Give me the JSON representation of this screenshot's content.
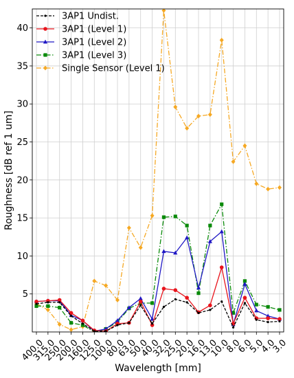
{
  "chart_data": {
    "type": "line",
    "title": "",
    "xlabel": "Wavelength [mm]",
    "ylabel": "Roughness [dB ref 1 um]",
    "ylim": [
      0,
      42.5
    ],
    "yticks": [
      5,
      10,
      15,
      20,
      25,
      30,
      35,
      40
    ],
    "grid": true,
    "legend_placement": "top-left",
    "categories": [
      "400.0",
      "315.0",
      "250.0",
      "200.0",
      "160.0",
      "125.0",
      "100.0",
      "80.0",
      "63.0",
      "50.0",
      "40.0",
      "32.0",
      "25.0",
      "20.0",
      "16.0",
      "13.0",
      "10.0",
      "8.0",
      "6.0",
      "5.0",
      "4.0",
      "3.0"
    ],
    "series": [
      {
        "name": "3AP1 Undist.",
        "color": "#000000",
        "linestyle": "dashed",
        "marker": "point",
        "values": [
          3.7,
          3.9,
          3.9,
          2.1,
          1.1,
          0.1,
          0.1,
          0.9,
          1.2,
          3.5,
          1.1,
          3.3,
          4.3,
          3.9,
          2.5,
          2.9,
          4.0,
          0.6,
          3.8,
          1.6,
          1.3,
          1.4
        ]
      },
      {
        "name": "3AP1 (Level 1)",
        "color": "#e8141c",
        "linestyle": "solid",
        "marker": "circle",
        "values": [
          4.0,
          4.1,
          4.2,
          2.5,
          1.5,
          0.2,
          0.1,
          1.1,
          1.2,
          4.0,
          0.9,
          5.7,
          5.5,
          4.5,
          2.6,
          3.5,
          8.5,
          1.1,
          4.5,
          1.8,
          1.8,
          1.7
        ]
      },
      {
        "name": "3AP1 (Level 2)",
        "color": "#1f17c4",
        "linestyle": "solid",
        "marker": "triangle",
        "values": [
          4.0,
          4.1,
          4.1,
          2.2,
          1.5,
          0.1,
          0.4,
          1.5,
          3.2,
          4.4,
          1.7,
          10.6,
          10.4,
          12.4,
          5.8,
          11.9,
          13.2,
          1.0,
          6.3,
          2.8,
          2.1,
          1.7
        ]
      },
      {
        "name": "3AP1 (Level 3)",
        "color": "#0a8a0a",
        "linestyle": "dashdot",
        "marker": "square",
        "values": [
          3.4,
          3.4,
          3.2,
          1.2,
          0.9,
          0.0,
          0.4,
          1.3,
          3.1,
          3.8,
          3.8,
          15.1,
          15.2,
          14.0,
          5.1,
          14.0,
          16.8,
          2.5,
          6.7,
          3.6,
          3.3,
          2.9
        ]
      },
      {
        "name": "Single Sensor (Level 1)",
        "color": "#f5a823",
        "linestyle": "dashdot",
        "marker": "diamond",
        "values": [
          3.7,
          2.9,
          1.0,
          0.3,
          0.7,
          6.7,
          6.1,
          4.2,
          13.7,
          11.1,
          15.3,
          42.3,
          29.6,
          26.8,
          28.4,
          28.6,
          38.4,
          22.4,
          24.5,
          19.5,
          18.8,
          19.0
        ]
      }
    ]
  }
}
